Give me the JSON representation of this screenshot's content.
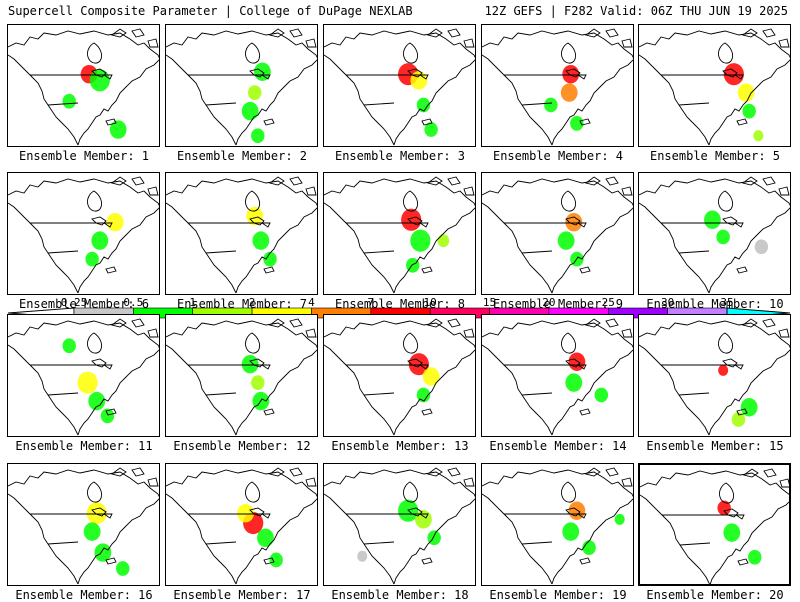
{
  "header": {
    "left_title": "Supercell Composite Parameter | College of DuPage NEXLAB",
    "right_title": "12Z GEFS | F282 Valid: 06Z THU JUN 19 2025"
  },
  "panel_label_prefix": "Ensemble Member: ",
  "members": [
    {
      "id": "1",
      "blobs": [
        [
          0.53,
          0.4,
          0.1,
          "#ff0000"
        ],
        [
          0.6,
          0.45,
          0.12,
          "#00ff00"
        ],
        [
          0.4,
          0.62,
          0.08,
          "#00ff00"
        ],
        [
          0.72,
          0.85,
          0.1,
          "#00ff00"
        ]
      ]
    },
    {
      "id": "2",
      "blobs": [
        [
          0.63,
          0.38,
          0.1,
          "#00ff00"
        ],
        [
          0.58,
          0.55,
          0.08,
          "#a0ff00"
        ],
        [
          0.55,
          0.7,
          0.1,
          "#00ff00"
        ],
        [
          0.6,
          0.9,
          0.08,
          "#00ff00"
        ]
      ]
    },
    {
      "id": "3",
      "blobs": [
        [
          0.55,
          0.4,
          0.12,
          "#ff0000"
        ],
        [
          0.62,
          0.45,
          0.1,
          "#ffff00"
        ],
        [
          0.65,
          0.65,
          0.08,
          "#00ff00"
        ],
        [
          0.7,
          0.85,
          0.08,
          "#00ff00"
        ]
      ]
    },
    {
      "id": "4",
      "blobs": [
        [
          0.58,
          0.4,
          0.1,
          "#ff0000"
        ],
        [
          0.57,
          0.55,
          0.1,
          "#ff7f00"
        ],
        [
          0.45,
          0.65,
          0.08,
          "#00ff00"
        ],
        [
          0.62,
          0.8,
          0.08,
          "#00ff00"
        ]
      ]
    },
    {
      "id": "5",
      "blobs": [
        [
          0.62,
          0.4,
          0.12,
          "#ff0000"
        ],
        [
          0.7,
          0.55,
          0.1,
          "#ffff00"
        ],
        [
          0.72,
          0.7,
          0.08,
          "#00ff00"
        ],
        [
          0.78,
          0.9,
          0.06,
          "#a0ff00"
        ]
      ]
    },
    {
      "id": "6",
      "blobs": [
        [
          0.7,
          0.4,
          0.1,
          "#ffff00"
        ],
        [
          0.6,
          0.55,
          0.1,
          "#00ff00"
        ],
        [
          0.55,
          0.7,
          0.08,
          "#00ff00"
        ]
      ]
    },
    {
      "id": "7",
      "blobs": [
        [
          0.58,
          0.35,
          0.1,
          "#ffff00"
        ],
        [
          0.62,
          0.55,
          0.1,
          "#00ff00"
        ],
        [
          0.68,
          0.7,
          0.08,
          "#00ff00"
        ]
      ]
    },
    {
      "id": "8",
      "blobs": [
        [
          0.57,
          0.38,
          0.12,
          "#ff0000"
        ],
        [
          0.63,
          0.55,
          0.12,
          "#00ff00"
        ],
        [
          0.58,
          0.75,
          0.08,
          "#00ff00"
        ],
        [
          0.78,
          0.55,
          0.07,
          "#a0ff00"
        ]
      ]
    },
    {
      "id": "9",
      "blobs": [
        [
          0.6,
          0.4,
          0.1,
          "#ff7f00"
        ],
        [
          0.55,
          0.55,
          0.1,
          "#00ff00"
        ],
        [
          0.62,
          0.7,
          0.08,
          "#00ff00"
        ]
      ]
    },
    {
      "id": "10",
      "blobs": [
        [
          0.48,
          0.38,
          0.1,
          "#00ff00"
        ],
        [
          0.55,
          0.52,
          0.08,
          "#00ff00"
        ],
        [
          0.8,
          0.6,
          0.08,
          "#c0c0c0"
        ]
      ]
    },
    {
      "id": "11",
      "blobs": [
        [
          0.4,
          0.25,
          0.08,
          "#00ff00"
        ],
        [
          0.52,
          0.55,
          0.12,
          "#ffff00"
        ],
        [
          0.58,
          0.7,
          0.1,
          "#00ff00"
        ],
        [
          0.65,
          0.82,
          0.08,
          "#00ff00"
        ]
      ]
    },
    {
      "id": "12",
      "blobs": [
        [
          0.55,
          0.4,
          0.1,
          "#00ff00"
        ],
        [
          0.6,
          0.55,
          0.08,
          "#a0ff00"
        ],
        [
          0.62,
          0.7,
          0.1,
          "#00ff00"
        ]
      ]
    },
    {
      "id": "13",
      "blobs": [
        [
          0.62,
          0.4,
          0.12,
          "#ff0000"
        ],
        [
          0.7,
          0.5,
          0.1,
          "#ffff00"
        ],
        [
          0.65,
          0.65,
          0.08,
          "#00ff00"
        ]
      ]
    },
    {
      "id": "14",
      "blobs": [
        [
          0.62,
          0.38,
          0.1,
          "#ff0000"
        ],
        [
          0.6,
          0.55,
          0.1,
          "#00ff00"
        ],
        [
          0.78,
          0.65,
          0.08,
          "#00ff00"
        ]
      ]
    },
    {
      "id": "15",
      "blobs": [
        [
          0.55,
          0.45,
          0.06,
          "#ff0000"
        ],
        [
          0.72,
          0.75,
          0.1,
          "#00ff00"
        ],
        [
          0.65,
          0.85,
          0.08,
          "#a0ff00"
        ]
      ]
    },
    {
      "id": "16",
      "blobs": [
        [
          0.58,
          0.4,
          0.12,
          "#ffff00"
        ],
        [
          0.55,
          0.55,
          0.1,
          "#00ff00"
        ],
        [
          0.62,
          0.72,
          0.1,
          "#00ff00"
        ],
        [
          0.75,
          0.85,
          0.08,
          "#00ff00"
        ]
      ]
    },
    {
      "id": "17",
      "blobs": [
        [
          0.57,
          0.48,
          0.12,
          "#ff0000"
        ],
        [
          0.52,
          0.4,
          0.1,
          "#ffff00"
        ],
        [
          0.65,
          0.6,
          0.1,
          "#00ff00"
        ],
        [
          0.72,
          0.78,
          0.08,
          "#00ff00"
        ]
      ]
    },
    {
      "id": "18",
      "blobs": [
        [
          0.55,
          0.38,
          0.12,
          "#00ff00"
        ],
        [
          0.65,
          0.45,
          0.1,
          "#a0ff00"
        ],
        [
          0.72,
          0.6,
          0.08,
          "#00ff00"
        ],
        [
          0.25,
          0.75,
          0.06,
          "#c0c0c0"
        ]
      ]
    },
    {
      "id": "19",
      "blobs": [
        [
          0.62,
          0.38,
          0.1,
          "#ff7f00"
        ],
        [
          0.58,
          0.55,
          0.1,
          "#00ff00"
        ],
        [
          0.7,
          0.68,
          0.08,
          "#00ff00"
        ],
        [
          0.9,
          0.45,
          0.06,
          "#00ff00"
        ]
      ]
    },
    {
      "id": "20",
      "blobs": [
        [
          0.55,
          0.35,
          0.08,
          "#ff0000"
        ],
        [
          0.6,
          0.55,
          0.1,
          "#00ff00"
        ],
        [
          0.75,
          0.75,
          0.08,
          "#00ff00"
        ]
      ]
    }
  ],
  "colorbar": {
    "labels": [
      "0.25",
      "0.5",
      "1",
      "2",
      "4",
      "7",
      "10",
      "15",
      "20",
      "25",
      "30",
      "35"
    ],
    "colors": [
      "#c8c8c8",
      "#00ff00",
      "#a0ff00",
      "#ffff00",
      "#ff7f00",
      "#ff0000",
      "#ff0060",
      "#ff00b0",
      "#ff00ff",
      "#a000ff",
      "#c080ff",
      "#00ffff"
    ]
  }
}
